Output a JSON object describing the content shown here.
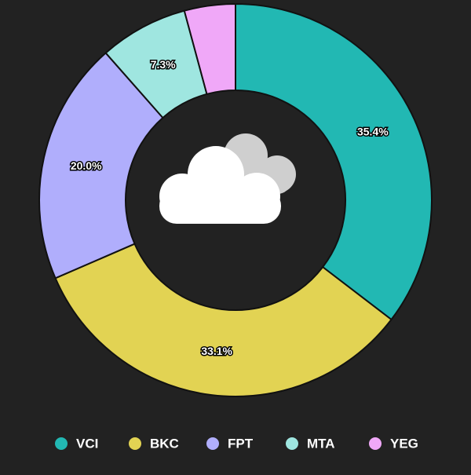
{
  "chart_data": {
    "type": "donut",
    "categories": [
      "VCI",
      "BKC",
      "FPT",
      "MTA",
      "YEG"
    ],
    "values": [
      35.4,
      33.1,
      20.0,
      7.3,
      4.2
    ],
    "value_labels": [
      "35.4%",
      "33.1%",
      "20.0%",
      "7.3%",
      null
    ],
    "colors": [
      "#22b8b3",
      "#e2d353",
      "#b0aefc",
      "#9fe6e0",
      "#f0a8f8"
    ],
    "legend": "bottom"
  }
}
